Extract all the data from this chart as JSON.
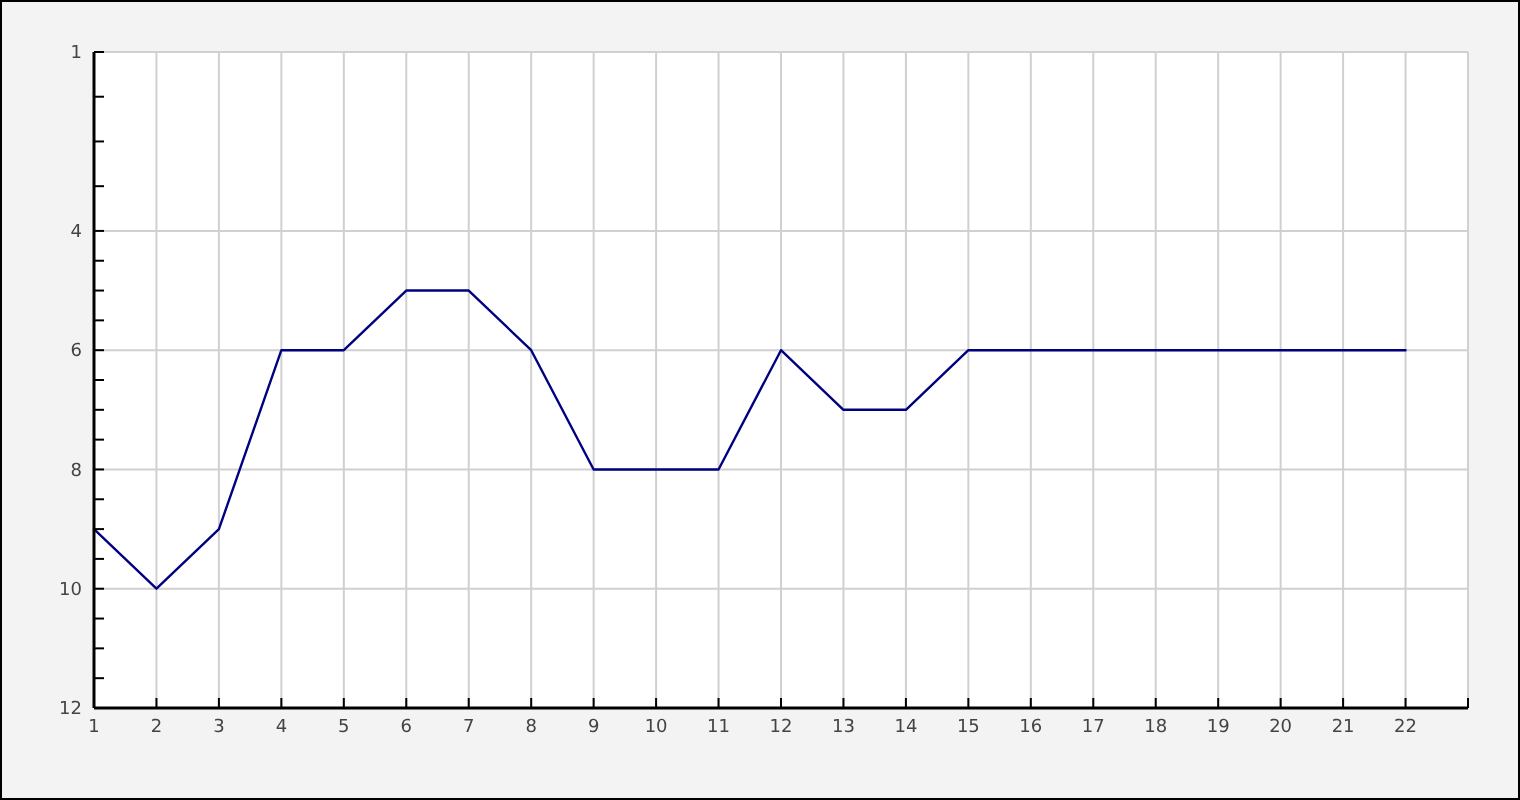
{
  "chart_data": {
    "type": "line",
    "x": [
      1,
      2,
      3,
      4,
      5,
      6,
      7,
      8,
      9,
      10,
      11,
      12,
      13,
      14,
      15,
      16,
      17,
      18,
      19,
      20,
      21,
      22
    ],
    "series": [
      {
        "color": "#000080",
        "values": [
          9,
          10,
          9,
          6,
          6,
          5,
          5,
          6,
          8,
          8,
          8,
          6,
          7,
          7,
          6,
          6,
          6,
          6,
          6,
          6,
          6,
          6
        ]
      }
    ],
    "xlim": [
      1,
      23
    ],
    "xticks": [
      1,
      2,
      3,
      4,
      5,
      6,
      7,
      8,
      9,
      10,
      11,
      12,
      13,
      14,
      15,
      16,
      17,
      18,
      19,
      20,
      21,
      22,
      {
        "value": 23,
        "label": null
      }
    ],
    "ylim": [
      12,
      1
    ],
    "yticks": [
      1,
      {
        "value": 1.75,
        "label": null
      },
      {
        "value": 2.5,
        "label": null
      },
      {
        "value": 3.25,
        "label": null
      },
      4,
      {
        "value": 4.5,
        "label": null
      },
      {
        "value": 5,
        "label": null
      },
      {
        "value": 5.5,
        "label": null
      },
      6,
      {
        "value": 6.5,
        "label": null
      },
      {
        "value": 7,
        "label": null
      },
      {
        "value": 7.5,
        "label": null
      },
      8,
      {
        "value": 8.5,
        "label": null
      },
      {
        "value": 9,
        "label": null
      },
      {
        "value": 9.5,
        "label": null
      },
      10,
      {
        "value": 10.5,
        "label": null
      },
      {
        "value": 11,
        "label": null
      },
      {
        "value": 11.5,
        "label": null
      },
      12
    ],
    "grid": true
  }
}
